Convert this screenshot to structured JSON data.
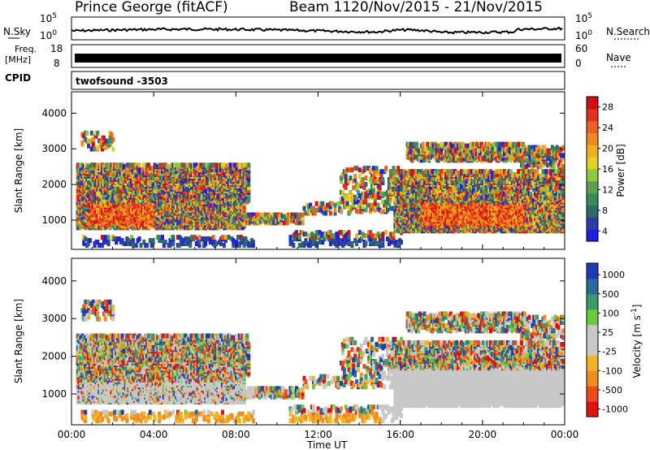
{
  "header": {
    "title": "Prince George (fitACF)",
    "beam": "Beam 11",
    "date_range": "20/Nov/2015 - 21/Nov/2015"
  },
  "strips": {
    "noise": {
      "left_label": "N.Sky",
      "right_label": "N.Search",
      "left_ticks": [
        "10^5",
        "10^0"
      ],
      "right_ticks": [
        "10^5",
        "10^0"
      ]
    },
    "freq": {
      "left_label": "Freq.",
      "left_unit": "[MHz]",
      "left_ticks": [
        "18",
        "8"
      ],
      "right_label": "Nave",
      "right_ticks": [
        "60",
        "0"
      ]
    },
    "cpid": {
      "label": "CPID",
      "value": "twofsound -3503"
    }
  },
  "colors": {
    "power_scale": [
      "#1e1ee6",
      "#2a3fa0",
      "#2f6a6a",
      "#3a8a5a",
      "#5aa050",
      "#8cc840",
      "#dcd22a",
      "#f0b020",
      "#f08a20",
      "#ec6020",
      "#e03020",
      "#d01010"
    ],
    "velocity_scale": [
      "#e01010",
      "#ec4a1a",
      "#f08c20",
      "#f0b428",
      "#c8c8c8",
      "#c8c8c8",
      "#6acc3a",
      "#3a9a6a",
      "#2a6a9a",
      "#1e3ab4"
    ]
  },
  "chart_data": [
    {
      "type": "heatmap",
      "name": "power",
      "ylabel": "Slant Range [km]",
      "ylim": [
        180,
        4600
      ],
      "yticks": [
        1000,
        2000,
        3000,
        4000
      ],
      "xlim_hours": [
        0,
        24
      ],
      "xticks": [
        "00:00",
        "04:00",
        "08:00",
        "12:00",
        "16:00",
        "20:00",
        "00:00"
      ],
      "colorbar_label": "Power [dB]",
      "colorbar_ticks": [
        "28",
        "24",
        "20",
        "16",
        "12",
        "8",
        "4"
      ],
      "colorbar_range": [
        0,
        30
      ]
    },
    {
      "type": "heatmap",
      "name": "velocity",
      "ylabel": "Slant Range [km]",
      "ylim": [
        180,
        4600
      ],
      "yticks": [
        1000,
        2000,
        3000,
        4000
      ],
      "xlim_hours": [
        0,
        24
      ],
      "xticks": [
        "00:00",
        "04:00",
        "08:00",
        "12:00",
        "16:00",
        "20:00",
        "00:00"
      ],
      "xlabel": "Time UT",
      "colorbar_label": "Velocity [m s^-1]",
      "colorbar_ticks": [
        "1000",
        "500",
        "100",
        "25",
        "-25",
        "-100",
        "-500",
        "-1000"
      ]
    }
  ]
}
